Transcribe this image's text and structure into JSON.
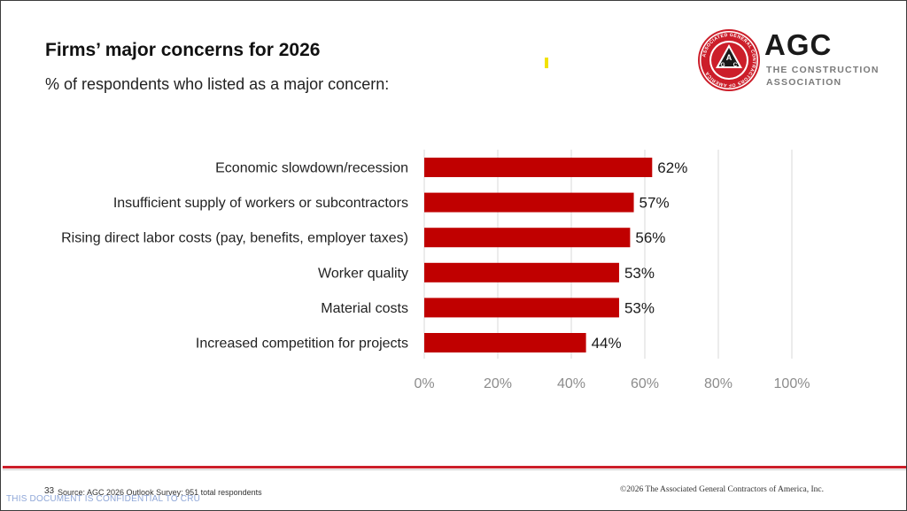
{
  "header": {
    "title": "Firms’ major concerns for 2026",
    "subtitle": "% of respondents who listed as a major concern:"
  },
  "logo": {
    "name": "AGC",
    "line1": "THE CONSTRUCTION",
    "line2": "ASSOCIATION",
    "seal_text": "ASSOCIATED GENERAL CONTRACTORS OF AMERICA",
    "seal_letters": "AGC"
  },
  "colors": {
    "bar": "#c00000",
    "accent_red": "#cc1e2a"
  },
  "chart_data": {
    "type": "bar",
    "orientation": "horizontal",
    "categories": [
      "Economic slowdown/recession",
      "Insufficient supply of workers or subcontractors",
      "Rising direct labor costs (pay, benefits, employer taxes)",
      "Worker quality",
      "Material costs",
      "Increased competition for projects"
    ],
    "values": [
      62,
      57,
      56,
      53,
      53,
      44
    ],
    "value_labels": [
      "62%",
      "57%",
      "56%",
      "53%",
      "53%",
      "44%"
    ],
    "xlim": [
      0,
      100
    ],
    "xticks": [
      0,
      20,
      40,
      60,
      80,
      100
    ],
    "xtick_labels": [
      "0%",
      "20%",
      "40%",
      "60%",
      "80%",
      "100%"
    ],
    "grid": true,
    "title": "Firms’ major concerns for 2026",
    "xlabel": "",
    "ylabel": ""
  },
  "footer": {
    "page_number": "33",
    "source": "Source: AGC 2026 Outlook Survey; 951 total respondents",
    "copyright": "©2026 The Associated General Contractors of America, Inc.",
    "confidential": "THIS DOCUMENT IS CONFIDENTIAL TO CRU"
  }
}
